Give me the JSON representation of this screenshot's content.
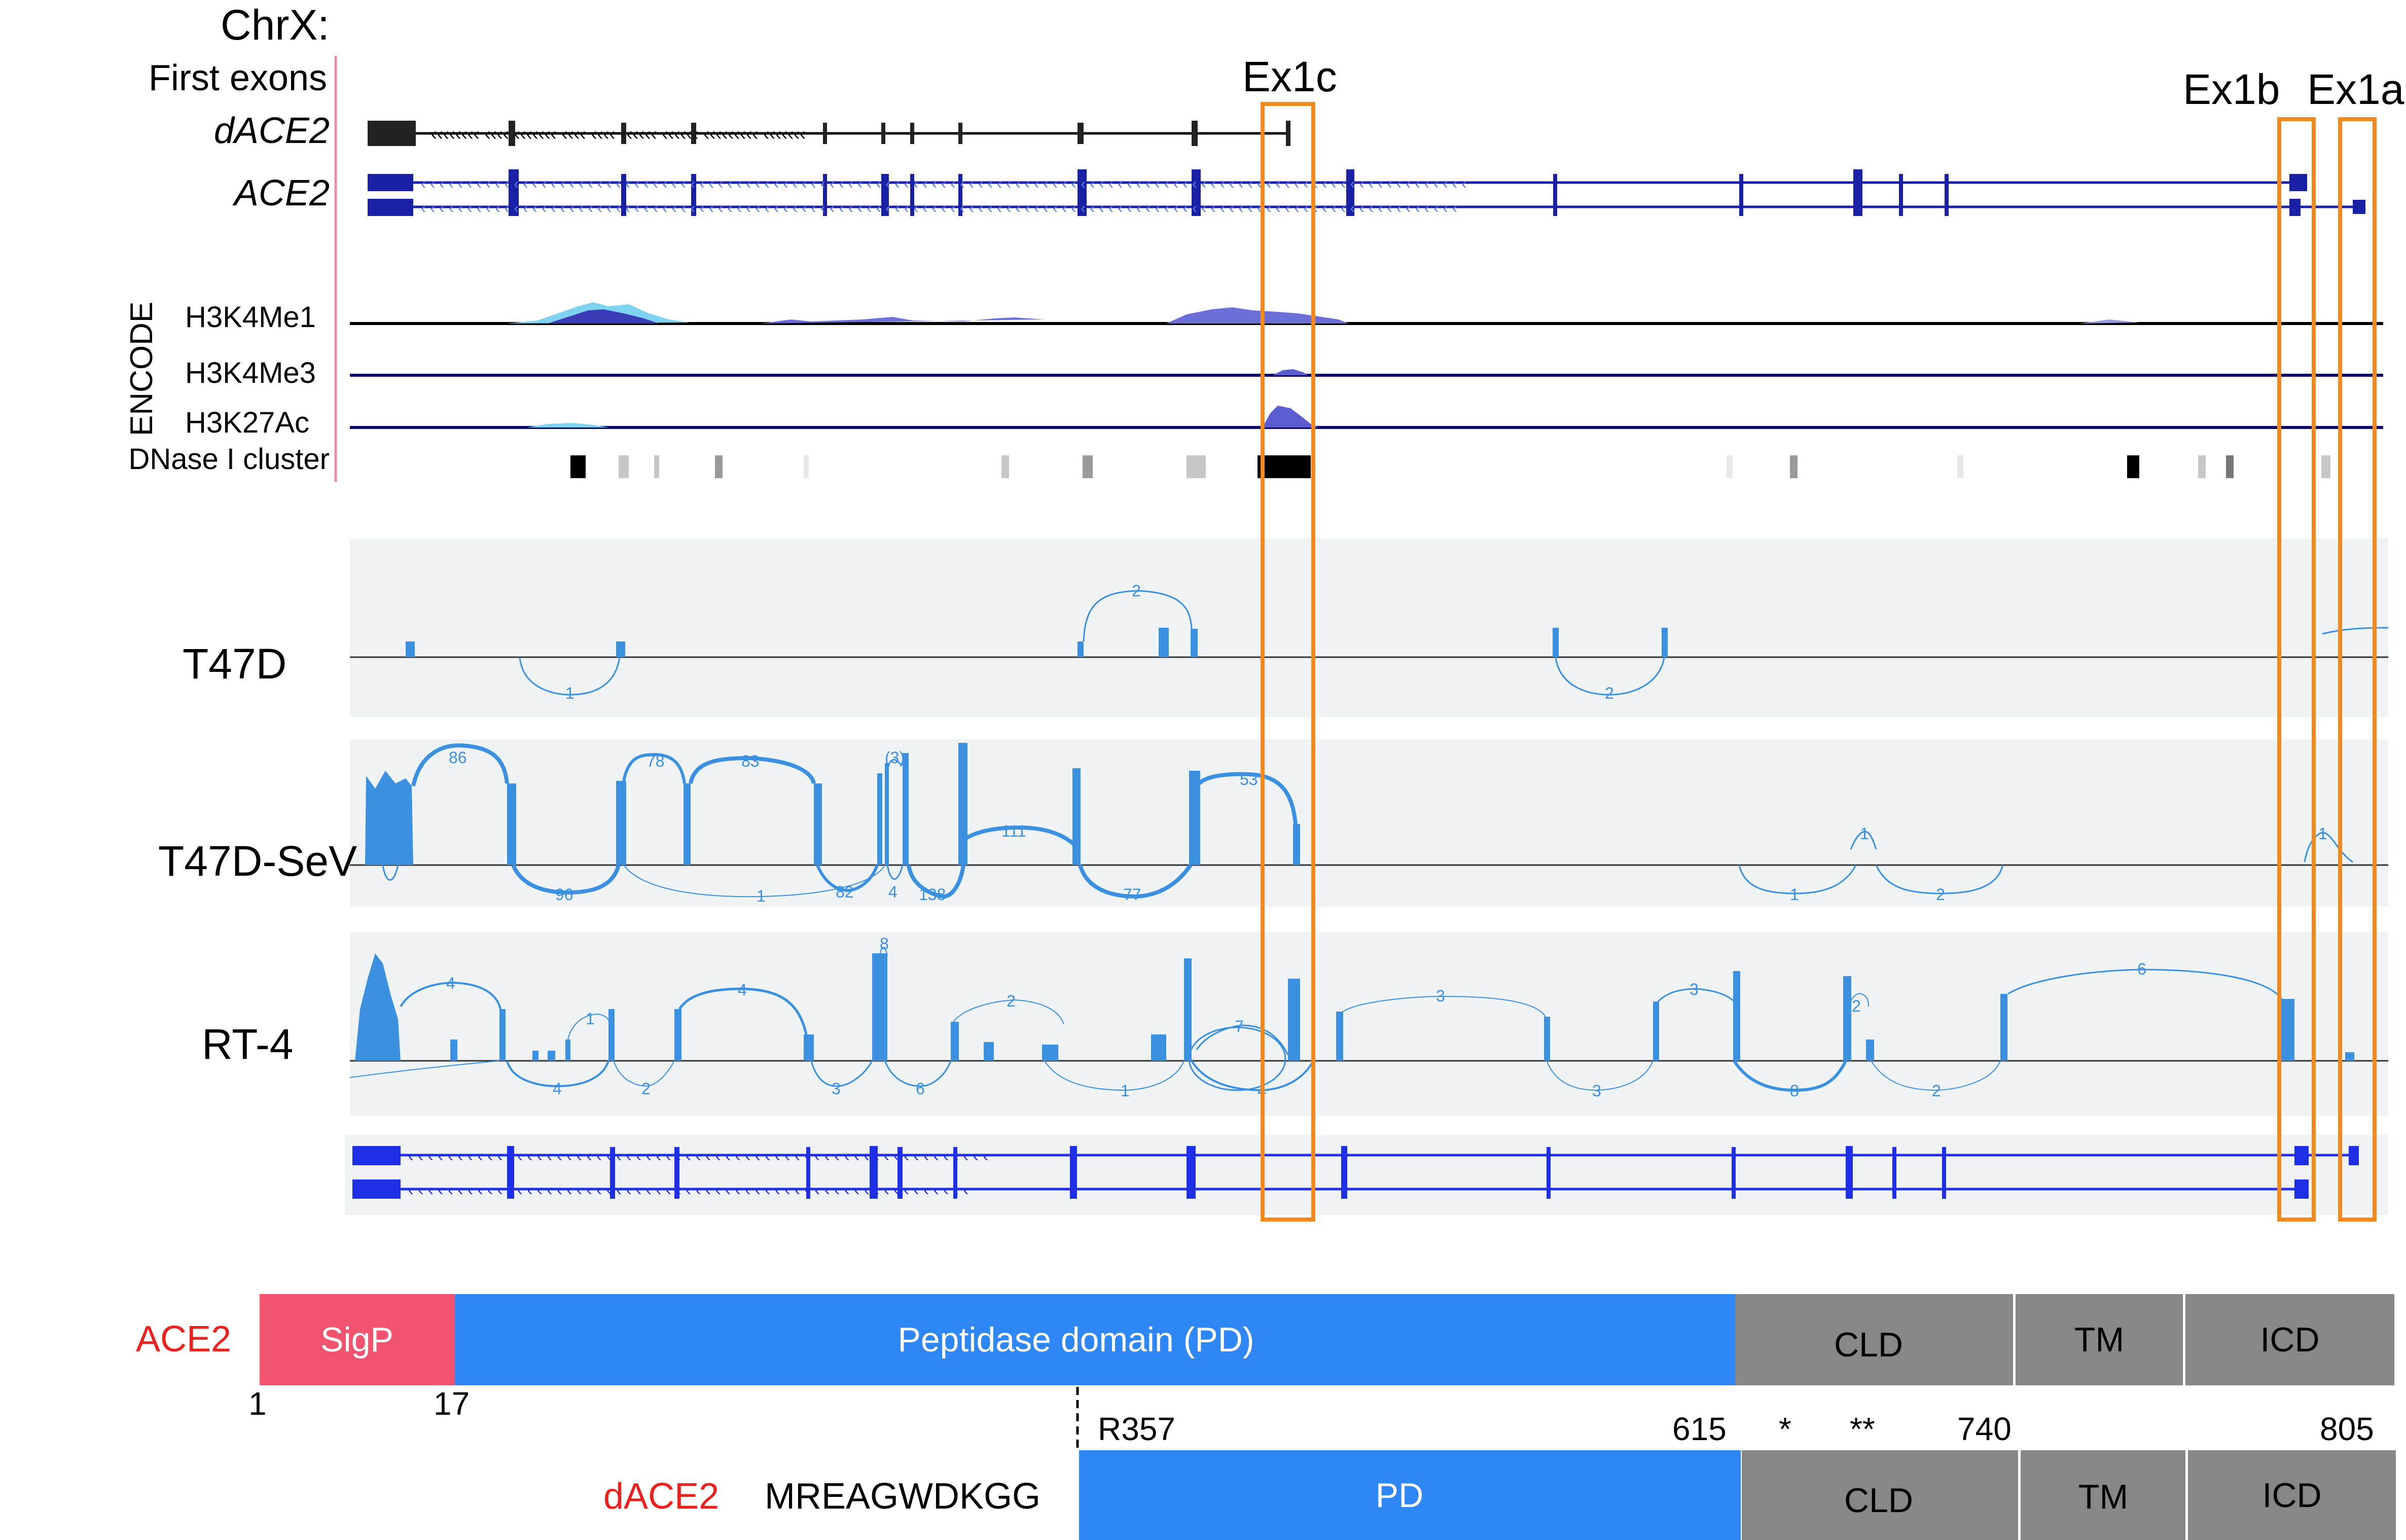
{
  "chromosome": "ChrX:",
  "first_exons_label": "First exons",
  "transcripts": {
    "dace2": "dACE2",
    "ace2": "ACE2"
  },
  "exon_labels": {
    "ex1c": "Ex1c",
    "ex1b": "Ex1b",
    "ex1a": "Ex1a"
  },
  "encode": {
    "group_label": "ENCODE",
    "tracks": [
      "H3K4Me1",
      "H3K4Me3",
      "H3K27Ac"
    ],
    "dnase_label": "DNase I cluster"
  },
  "sashimi": {
    "samples": [
      "T47D",
      "T47D-SeV",
      "RT-4"
    ],
    "t47d_counts": [
      "2",
      "1",
      "2"
    ],
    "t47dsev_counts": [
      "86",
      "78",
      "83",
      "(3)",
      "53",
      "111",
      "1",
      "1",
      "96",
      "1",
      "82",
      "4",
      "138",
      "77",
      "1",
      "2"
    ],
    "rt4_counts": [
      "4",
      "1",
      "4",
      "8",
      "2",
      "7",
      "3",
      "3",
      "2",
      "6",
      "4",
      "2",
      "3",
      "6",
      "1",
      "4",
      "3",
      "8",
      "2"
    ]
  },
  "protein": {
    "ace2_label": "ACE2",
    "dace2_label": "dACE2",
    "dace2_prefix": "MREAGWDKGG",
    "domains": {
      "sigp": "SigP",
      "pd": "Peptidase domain (PD)",
      "pd_short": "PD",
      "cld": "CLD",
      "tm": "TM",
      "icd": "ICD"
    },
    "positions": {
      "p1": "1",
      "p17": "17",
      "r357": "R357",
      "p615": "615",
      "p740": "740",
      "p805": "805",
      "star1": "*",
      "star2": "**"
    }
  },
  "colors": {
    "orange_box": "#f2891f",
    "sigp": "#f2546f",
    "pd": "#2f86f5",
    "gray_domain": "#878787",
    "ace2_label": "#e8231f",
    "transcript_navy": "#1a20a6",
    "sashimi_blue": "#3b90e0",
    "sashimi_panel": "#f0f3f4"
  }
}
